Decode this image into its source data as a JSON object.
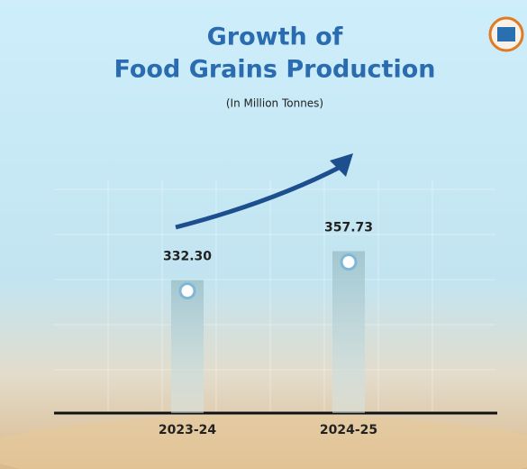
{
  "chart_data": {
    "type": "bar",
    "title": [
      "Growth of",
      "Food Grains Production"
    ],
    "subtitle": "(In Million Tonnes)",
    "categories": [
      "2023-24",
      "2024-25"
    ],
    "values": [
      332.3,
      357.73
    ],
    "value_labels": [
      "332.30",
      "357.73"
    ],
    "ylim": [
      215,
      380
    ],
    "color": "#b9d2da"
  }
}
